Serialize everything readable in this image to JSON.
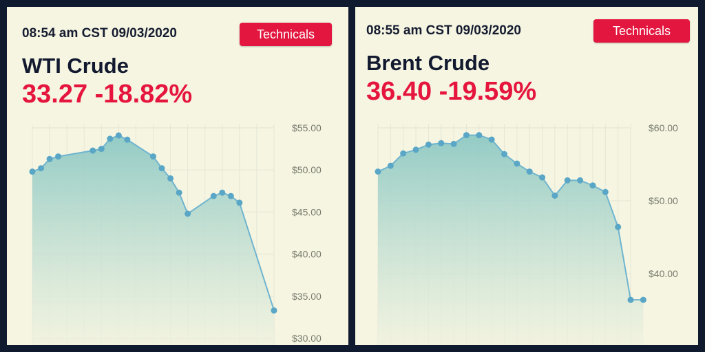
{
  "panels": [
    {
      "timestamp": "08:54 am CST 09/03/2020",
      "button_label": "Technicals",
      "name": "WTI Crude",
      "quote": "33.27 -18.82%"
    },
    {
      "timestamp": "08:55 am CST 09/03/2020",
      "button_label": "Technicals",
      "name": "Brent Crude",
      "quote": "36.40 -19.59%"
    }
  ],
  "colors": {
    "accent_red": "#e3163f",
    "line": "#6fb4cf",
    "point": "#5aa6c6",
    "fill_top": "#8ec9c4",
    "fill_bottom": "#f0f2df"
  },
  "chart_data": [
    {
      "type": "area",
      "ylim": [
        30,
        55
      ],
      "yticks": [
        55,
        50,
        45,
        40,
        35,
        30
      ],
      "ytick_labels": [
        "$55.00",
        "$50.00",
        "$45.00",
        "$40.00",
        "$35.00",
        "$30.00"
      ],
      "x": [
        0,
        1,
        2,
        3,
        7,
        8,
        9,
        10,
        11,
        14,
        15,
        16,
        17,
        18,
        21,
        22,
        23,
        24,
        28
      ],
      "values": [
        49.8,
        50.2,
        51.3,
        51.6,
        52.3,
        52.5,
        53.7,
        54.1,
        53.6,
        51.6,
        50.2,
        49.0,
        47.3,
        44.8,
        46.9,
        47.3,
        46.9,
        46.1,
        33.3
      ],
      "x_extent": [
        0,
        28
      ],
      "grid": true,
      "legend": "none"
    },
    {
      "type": "area",
      "ylim": [
        30,
        60
      ],
      "yticks": [
        60,
        50,
        40
      ],
      "ytick_labels": [
        "$60.00",
        "$50.00",
        "$40.00"
      ],
      "x": [
        0,
        1,
        2,
        3,
        4,
        5,
        6,
        7,
        8,
        9,
        10,
        11,
        12,
        13,
        14,
        15,
        16,
        17,
        18,
        19,
        20,
        21
      ],
      "values": [
        54.0,
        54.8,
        56.5,
        57.0,
        57.7,
        57.9,
        57.8,
        59.0,
        59.0,
        58.4,
        56.4,
        55.1,
        54.0,
        53.2,
        50.7,
        52.8,
        52.8,
        52.1,
        51.2,
        46.4,
        36.4,
        36.4
      ],
      "x_extent": [
        0,
        20
      ],
      "grid": true,
      "legend": "none"
    }
  ]
}
